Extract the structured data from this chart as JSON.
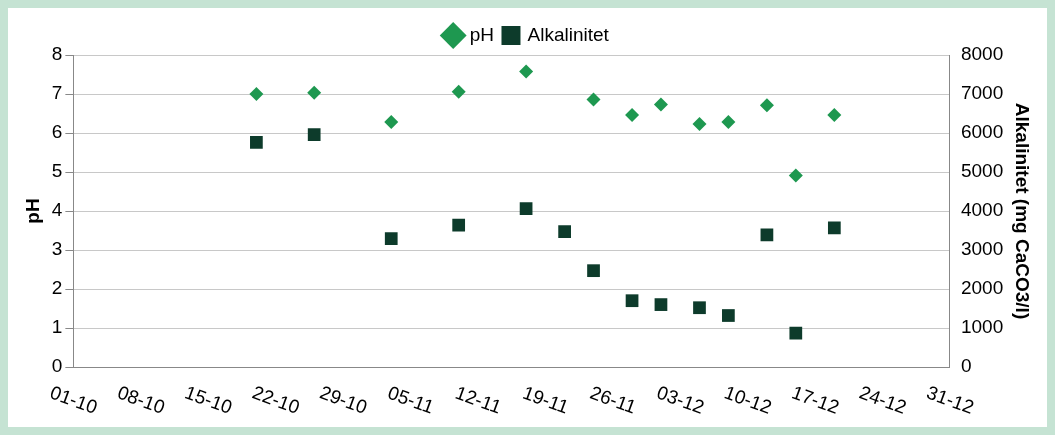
{
  "chart_data": {
    "type": "scatter",
    "ylabel": "pH",
    "y2label": "Alkalinitet (mg CaCO3/l)",
    "legend": "top",
    "grid": "y",
    "xlim": [
      "--10-01",
      "--12-31"
    ],
    "xticks": [
      {
        "value": "--10-01",
        "label": "01-10"
      },
      {
        "value": "--10-08",
        "label": "08-10"
      },
      {
        "value": "--10-15",
        "label": "15-10"
      },
      {
        "value": "--10-22",
        "label": "22-10"
      },
      {
        "value": "--10-29",
        "label": "29-10"
      },
      {
        "value": "--11-05",
        "label": "05-11"
      },
      {
        "value": "--11-12",
        "label": "12-11"
      },
      {
        "value": "--11-19",
        "label": "19-11"
      },
      {
        "value": "--11-26",
        "label": "26-11"
      },
      {
        "value": "--12-03",
        "label": "03-12"
      },
      {
        "value": "--12-10",
        "label": "10-12"
      },
      {
        "value": "--12-17",
        "label": "17-12"
      },
      {
        "value": "--12-24",
        "label": "24-12"
      },
      {
        "value": "--12-31",
        "label": "31-12"
      }
    ],
    "ylim": [
      0,
      8
    ],
    "yticks": [
      0,
      1,
      2,
      3,
      4,
      5,
      6,
      7,
      8
    ],
    "y2lim": [
      0,
      8000
    ],
    "y2ticks": [
      0,
      1000,
      2000,
      3000,
      4000,
      5000,
      6000,
      7000,
      8000
    ],
    "series": [
      {
        "name": "pH",
        "color": "#1e9850",
        "marker": "diamond",
        "x": [
          "--10-20",
          "--10-26",
          "--11-03",
          "--11-10",
          "--11-17",
          "--11-24",
          "--11-28",
          "--12-01",
          "--12-05",
          "--12-08",
          "--12-12",
          "--12-15",
          "--12-19"
        ],
        "values": [
          7.0,
          7.03,
          6.28,
          7.06,
          7.58,
          6.86,
          6.46,
          6.73,
          6.23,
          6.28,
          6.71,
          4.91,
          6.46
        ]
      },
      {
        "name": "Alkalinitet",
        "color": "#0d3b2b",
        "marker": "square",
        "axis": "y2",
        "x": [
          "--10-20",
          "--10-26",
          "--11-03",
          "--11-10",
          "--11-17",
          "--11-21",
          "--11-24",
          "--11-28",
          "--12-01",
          "--12-05",
          "--12-08",
          "--12-12",
          "--12-15",
          "--12-19"
        ],
        "values": [
          5760,
          5960,
          3290,
          3640,
          4060,
          3470,
          2470,
          1700,
          1600,
          1520,
          1320,
          3390,
          870,
          3570
        ]
      }
    ]
  }
}
